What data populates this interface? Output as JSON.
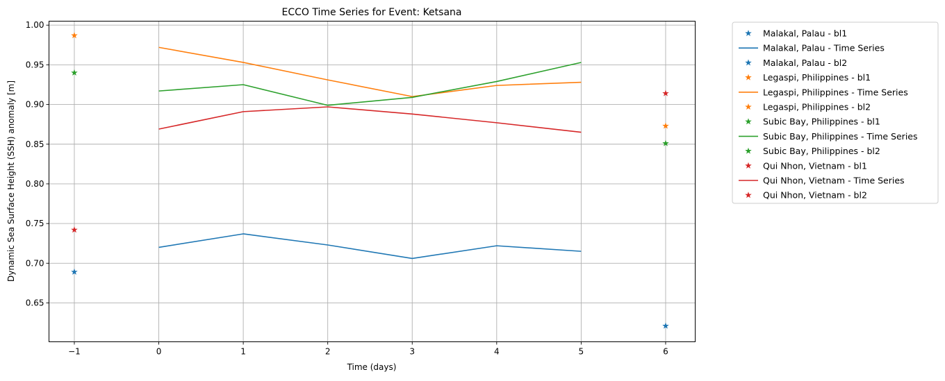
{
  "chart_data": {
    "type": "line",
    "title": "ECCO Time Series for Event: Ketsana",
    "xlabel": "Time (days)",
    "ylabel": "Dynamic Sea Surface Height (SSH) anomaly [m]",
    "xlim": [
      -1.3,
      6.35
    ],
    "ylim": [
      0.601,
      1.005
    ],
    "x_ticks": [
      -1,
      0,
      1,
      2,
      3,
      4,
      5,
      6
    ],
    "x_tick_labels": [
      "−1",
      "0",
      "1",
      "2",
      "3",
      "4",
      "5",
      "6"
    ],
    "y_ticks": [
      0.65,
      0.7,
      0.75,
      0.8,
      0.85,
      0.9,
      0.95,
      1.0
    ],
    "y_tick_labels": [
      "0.65",
      "0.70",
      "0.75",
      "0.80",
      "0.85",
      "0.90",
      "0.95",
      "1.00"
    ],
    "grid": true,
    "legend_position": "outside-right",
    "x": [
      0,
      1,
      2,
      3,
      4,
      5
    ],
    "series": [
      {
        "station": "Malakal, Palau",
        "color": "#1f77b4",
        "bl1_label": "Malakal, Palau - bl1",
        "ts_label": "Malakal, Palau - Time Series",
        "bl2_label": "Malakal, Palau - bl2",
        "bl1": {
          "x": -1,
          "y": 0.689
        },
        "values": [
          0.72,
          0.737,
          0.723,
          0.706,
          0.722,
          0.715
        ],
        "bl2": {
          "x": 6,
          "y": 0.621
        }
      },
      {
        "station": "Legaspi, Philippines",
        "color": "#ff7f0e",
        "bl1_label": "Legaspi, Philippines - bl1",
        "ts_label": "Legaspi, Philippines - Time Series",
        "bl2_label": "Legaspi, Philippines - bl2",
        "bl1": {
          "x": -1,
          "y": 0.987
        },
        "values": [
          0.972,
          0.953,
          0.931,
          0.91,
          0.924,
          0.928
        ],
        "bl2": {
          "x": 6,
          "y": 0.873
        }
      },
      {
        "station": "Subic Bay, Philippines",
        "color": "#2ca02c",
        "bl1_label": "Subic Bay, Philippines - bl1",
        "ts_label": "Subic Bay, Philippines - Time Series",
        "bl2_label": "Subic Bay, Philippines - bl2",
        "bl1": {
          "x": -1,
          "y": 0.94
        },
        "values": [
          0.917,
          0.925,
          0.899,
          0.909,
          0.929,
          0.953
        ],
        "bl2": {
          "x": 6,
          "y": 0.851
        }
      },
      {
        "station": "Qui Nhon, Vietnam",
        "color": "#d62728",
        "bl1_label": "Qui Nhon, Vietnam - bl1",
        "ts_label": "Qui Nhon, Vietnam - Time Series",
        "bl2_label": "Qui Nhon, Vietnam - bl2",
        "bl1": {
          "x": -1,
          "y": 0.742
        },
        "values": [
          0.869,
          0.891,
          0.897,
          0.888,
          0.877,
          0.865
        ],
        "bl2": {
          "x": 6,
          "y": 0.914
        }
      }
    ]
  }
}
